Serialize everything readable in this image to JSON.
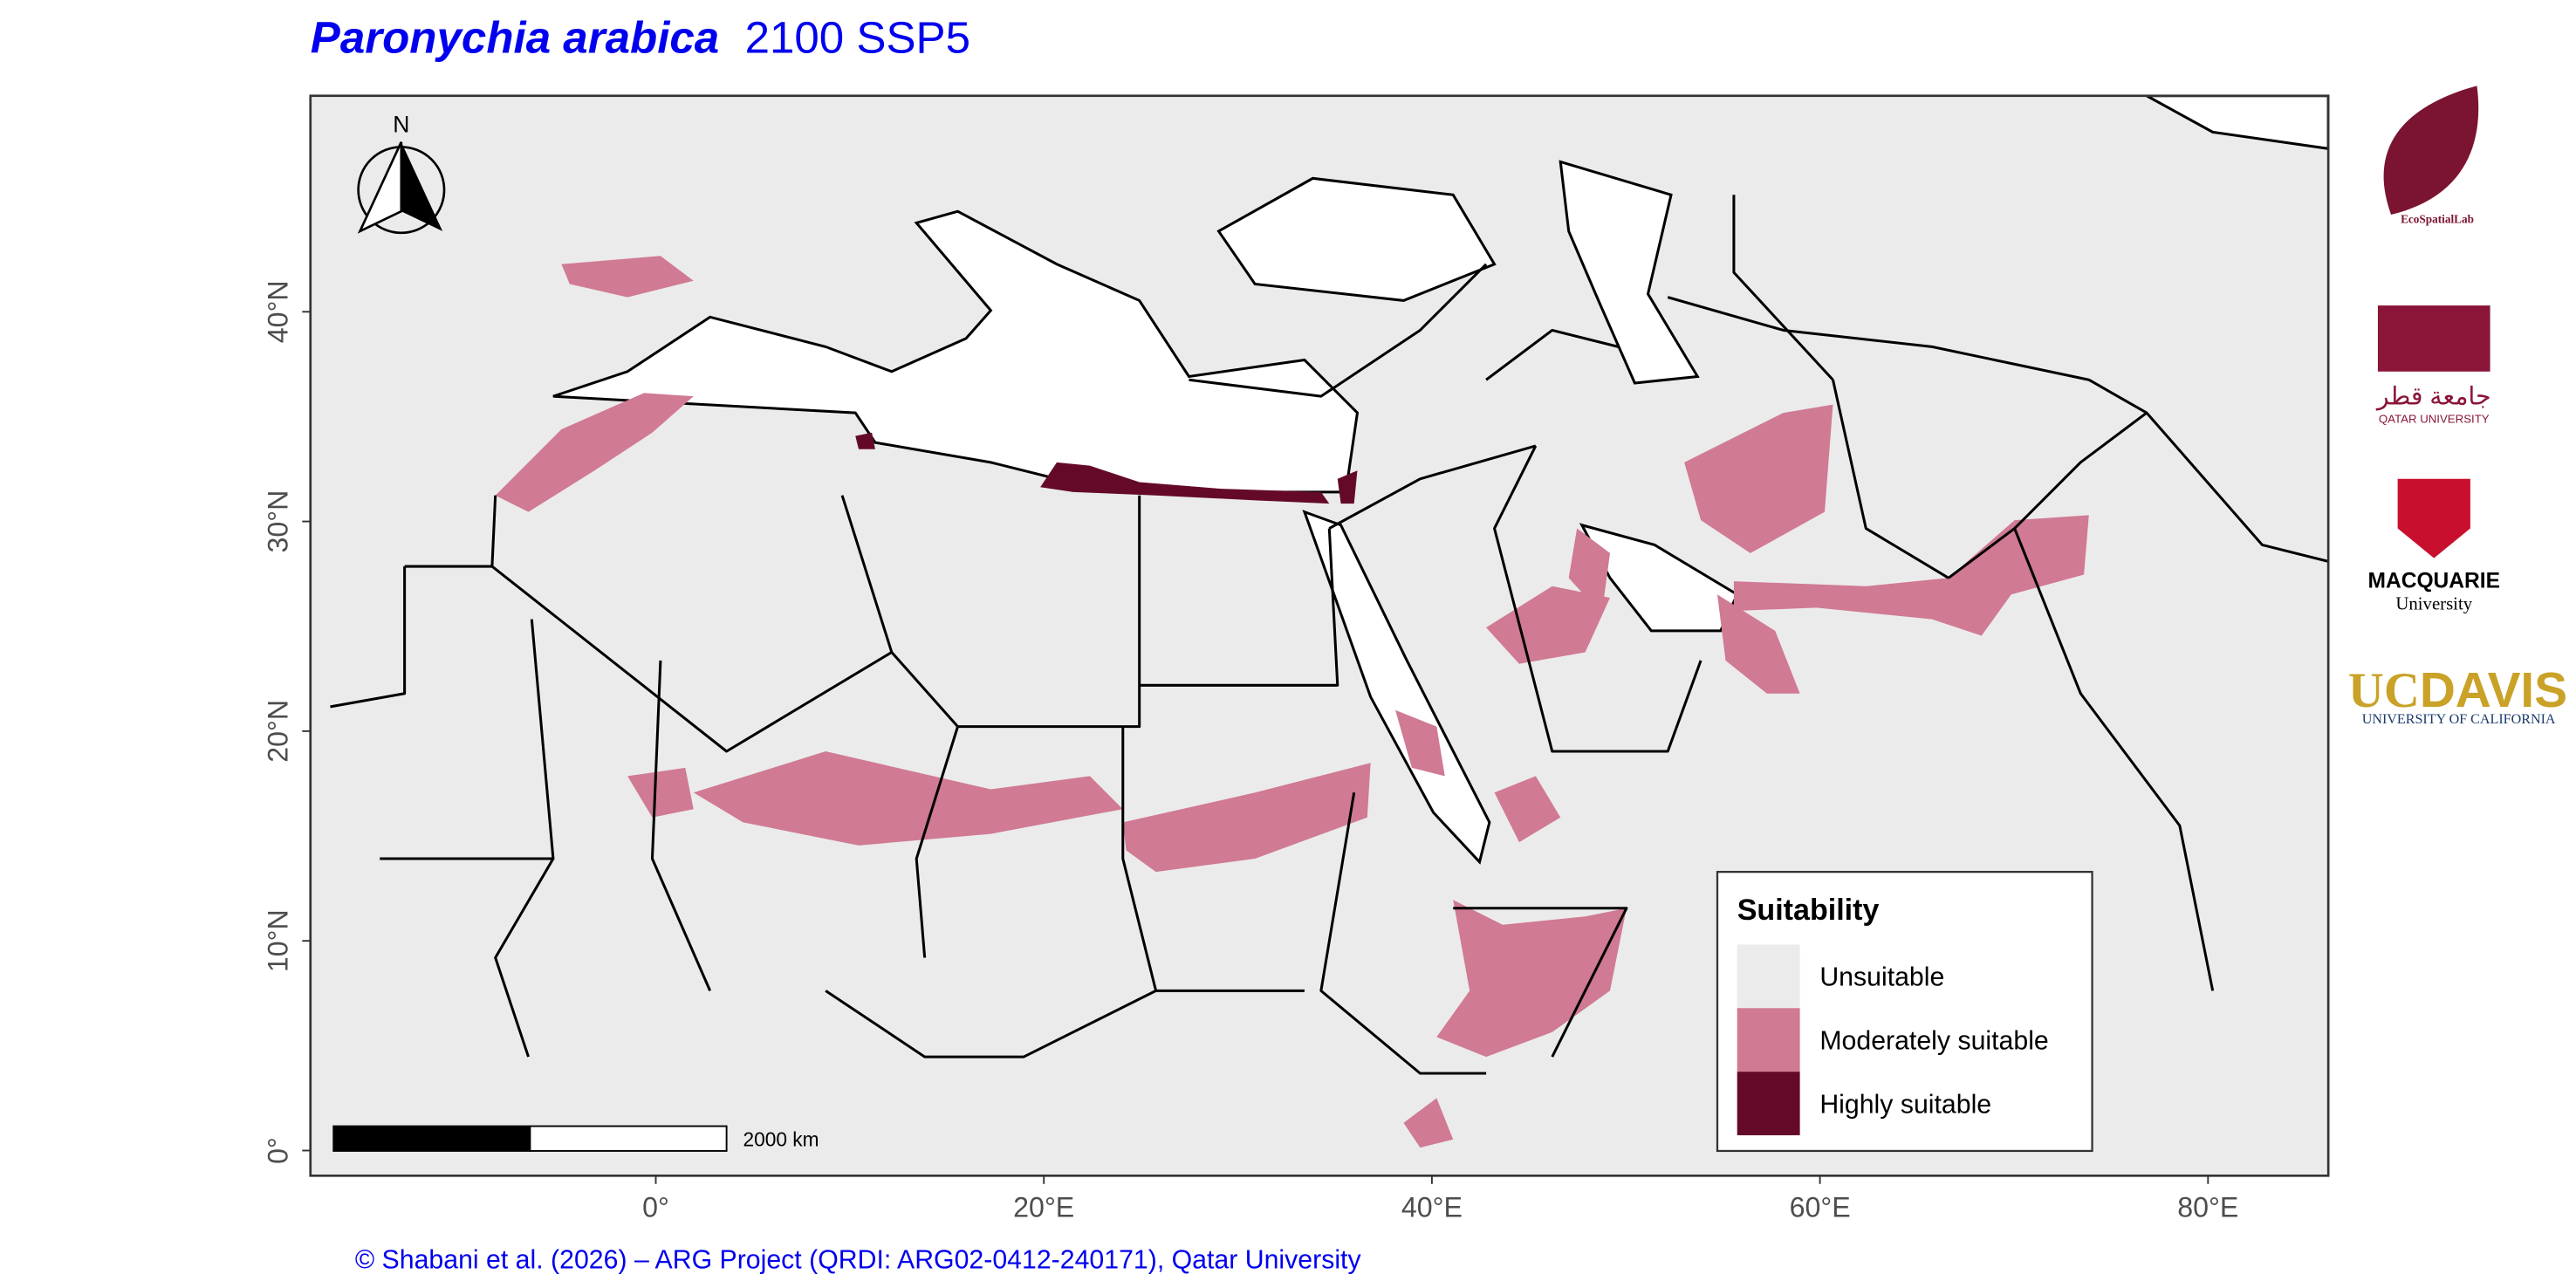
{
  "title": {
    "species": "Paronychia arabica",
    "scenario": "2100 SSP5"
  },
  "map": {
    "xlim": [
      -17.8,
      86.2
    ],
    "ylim": [
      -1.2,
      50.3
    ],
    "xticks": [
      {
        "value": 0,
        "label": "0°"
      },
      {
        "value": 20,
        "label": "20°E"
      },
      {
        "value": 40,
        "label": "40°E"
      },
      {
        "value": 60,
        "label": "60°E"
      },
      {
        "value": 80,
        "label": "80°E"
      }
    ],
    "yticks": [
      {
        "value": 0,
        "label": "0°"
      },
      {
        "value": 10,
        "label": "10°N"
      },
      {
        "value": 20,
        "label": "20°N"
      },
      {
        "value": 30,
        "label": "30°N"
      },
      {
        "value": 40,
        "label": "40°N"
      }
    ]
  },
  "legend": {
    "title": "Suitability",
    "items": [
      {
        "label": "Unsuitable",
        "color": "#ebebeb"
      },
      {
        "label": "Moderately suitable",
        "color": "#d07a94"
      },
      {
        "label": "Highly suitable",
        "color": "#640a28"
      }
    ]
  },
  "north_label": "N",
  "scale_bar": "2000 km",
  "caption": "© Shabani et al. (2026) – ARG Project (QRDI: ARG02-0412-240171), Qatar University",
  "logos": {
    "ecospatial": "EcoSpatialLab",
    "qatar_arabic": "جامعة قطر",
    "qatar": "QATAR UNIVERSITY",
    "macquarie": "MACQUARIE",
    "macquarie_sub": "University",
    "ucdavis_uc": "UC",
    "ucdavis_davis": "DAVIS",
    "ucdavis_sub": "UNIVERSITY OF CALIFORNIA"
  }
}
